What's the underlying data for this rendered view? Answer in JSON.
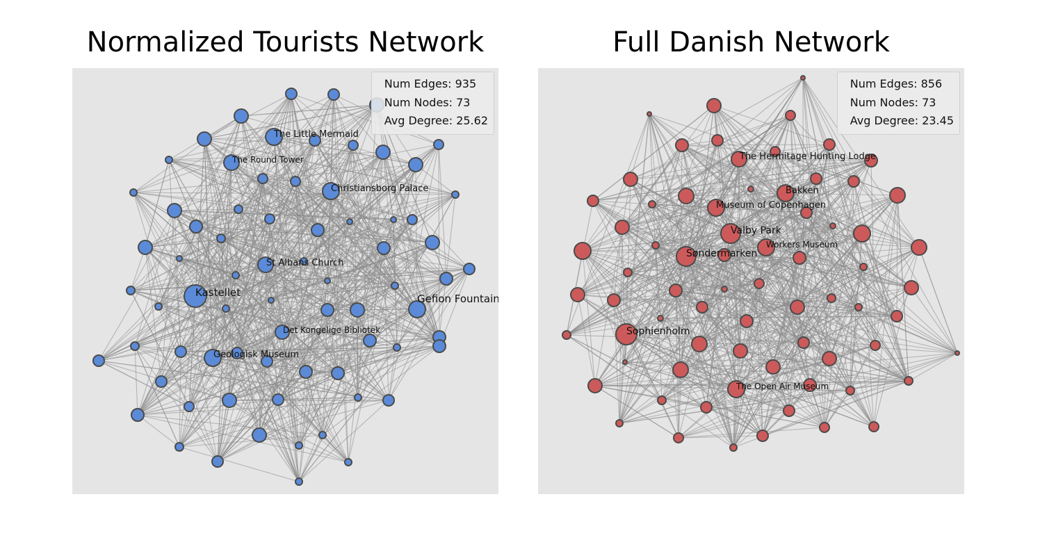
{
  "panels": [
    {
      "title": "Normalized Tourists Network",
      "color": "#5b8bd8",
      "stats": {
        "edges": "Num Edges: 935",
        "nodes": "Num Nodes: 73",
        "degree": "Avg Degree: 25.62"
      },
      "labels": [
        "The Little Mermaid",
        "The Round Tower",
        "Christiansborg Palace",
        "St Albans Church",
        "Kastellet",
        "Gefion Fountain",
        "Det Kongelige Bibliotek",
        "Geologisk Museum"
      ]
    },
    {
      "title": "Full Danish Network",
      "color": "#cd5a5a",
      "stats": {
        "edges": "Num Edges: 856",
        "nodes": "Num Nodes: 73",
        "degree": "Avg Degree: 23.45"
      },
      "labels": [
        "The Hermitage Hunting Lodge",
        "Bakken",
        "Museum of Copenhagen",
        "Valby Park",
        "Workers Museum",
        "Søndermarken",
        "Sophienholm",
        "The Open Air Museum"
      ]
    }
  ]
}
